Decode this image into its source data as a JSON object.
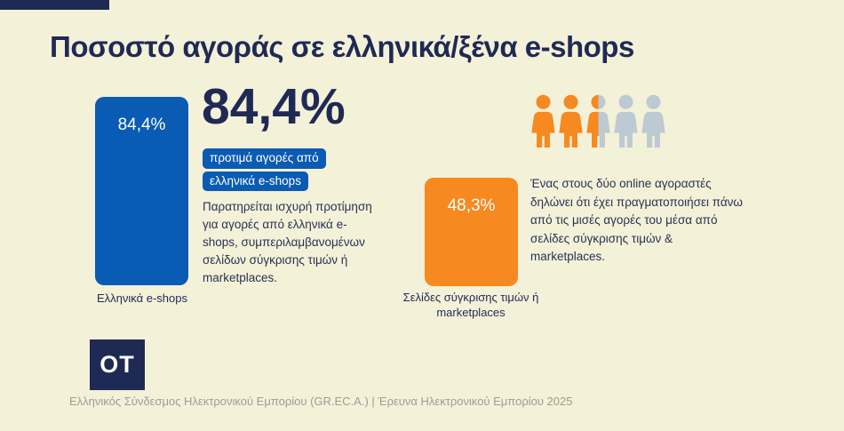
{
  "page": {
    "background_color": "#F4F1D9",
    "accent_navy": "#1F2A54"
  },
  "header": {
    "title": "Ποσοστό αγοράς σε ελληνικά/ξένα e-shops"
  },
  "left_stat": {
    "bar_value": "84,4%",
    "bar_color": "#0A5BB3",
    "bar_label": "Ελληνικά e-shops",
    "big_value": "84,4%",
    "highlight_line1": "προτιμά αγορές από",
    "highlight_line2": "ελληνικά e-shops",
    "description": "Παρατηρείται ισχυρή προτίμηση για αγορές από ελληνικά e-shops, συμπεριλαμβανομένων σελίδων σύγκρισης τιμών ή marketplaces."
  },
  "right_stat": {
    "bar_value": "48,3%",
    "bar_color": "#F6891F",
    "bar_label": "Σελίδες σύγκρισης τιμών ή marketplaces",
    "description": "Ένας στους δύο online αγοραστές δηλώνει ότι έχει πραγματοποιήσει πάνω από τις μισές αγορές του μέσα από σελίδες σύγκρισης τιμών & marketplaces.",
    "people_icons": [
      "orange",
      "orange",
      "half-orange-gray",
      "gray",
      "gray"
    ],
    "person_orange": "#F6891F",
    "person_gray": "#BDC9D3"
  },
  "footer": {
    "logo_text": "OT",
    "source": "Ελληνικός Σύνδεσμος Ηλεκτρονικού Εμπορίου (GR.EC.A.) | Έρευνα Ηλεκτρονικού Εμπορίου 2025"
  },
  "chart_data": {
    "type": "bar",
    "title": "Ποσοστό αγοράς σε ελληνικά/ξένα e-shops",
    "categories": [
      "Ελληνικά e-shops",
      "Σελίδες σύγκρισης τιμών ή marketplaces"
    ],
    "values": [
      84.4,
      48.3
    ],
    "unit": "%",
    "series_colors": [
      "#0A5BB3",
      "#F6891F"
    ],
    "ylim": [
      0,
      100
    ],
    "grid": false,
    "legend": false,
    "annotations": [
      "84,4% προτιμά αγορές από ελληνικά e-shops",
      "Ένας στους δύο online αγοραστές δηλώνει ότι έχει πραγματοποιήσει πάνω από τις μισές αγορές του μέσα από σελίδες σύγκρισης τιμών & marketplaces."
    ],
    "pictogram": {
      "total_icons": 5,
      "filled_icons": 2.5,
      "meaning": "1 στους 2 online αγοραστές (48,3%)"
    },
    "source": "Ελληνικός Σύνδεσμος Ηλεκτρονικού Εμπορίου (GR.EC.A.) | Έρευνα Ηλεκτρονικού Εμπορίου 2025"
  }
}
